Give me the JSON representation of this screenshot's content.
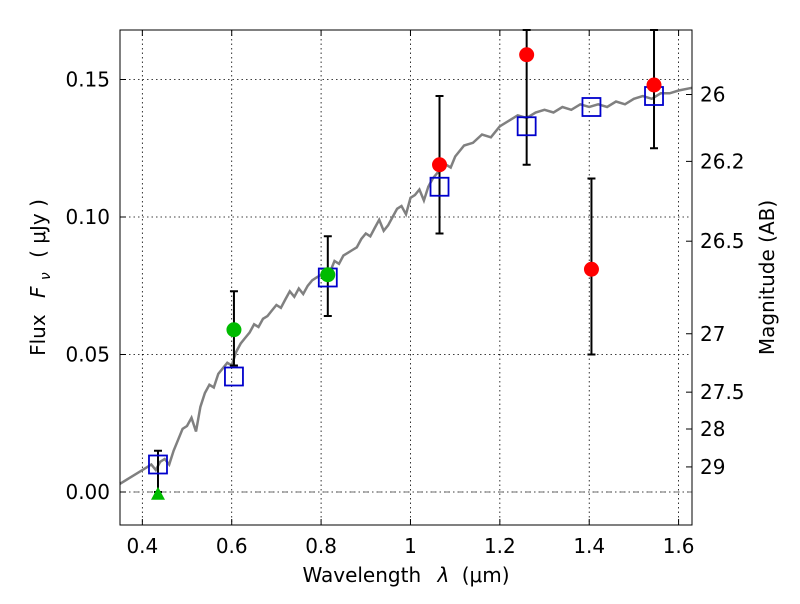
{
  "chart_data": {
    "type": "scatter",
    "xlabel": "Wavelength",
    "xlabel_symbol": "λ",
    "xlabel_unit": "(μm)",
    "ylabel": "Flux",
    "ylabel_symbol": "F",
    "ylabel_subscript": "ν",
    "ylabel_unit": "( μJy )",
    "y2label": "Magnitude (AB)",
    "xlim": [
      0.35,
      1.63
    ],
    "ylim": [
      -0.012,
      0.168
    ],
    "grid": true,
    "xticks": [
      {
        "value": 0.4,
        "label": "0.4"
      },
      {
        "value": 0.6,
        "label": "0.6"
      },
      {
        "value": 0.8,
        "label": "0.8"
      },
      {
        "value": 1.0,
        "label": "1"
      },
      {
        "value": 1.2,
        "label": "1.2"
      },
      {
        "value": 1.4,
        "label": "1.4"
      },
      {
        "value": 1.6,
        "label": "1.6"
      }
    ],
    "yticks": [
      {
        "value": 0.0,
        "label": "0.00"
      },
      {
        "value": 0.05,
        "label": "0.05"
      },
      {
        "value": 0.1,
        "label": "0.10"
      },
      {
        "value": 0.15,
        "label": "0.15"
      }
    ],
    "y2ticks": [
      {
        "value": 26,
        "label": "26"
      },
      {
        "value": 26.2,
        "label": "26.2"
      },
      {
        "value": 26.5,
        "label": "26.5"
      },
      {
        "value": 27,
        "label": "27"
      },
      {
        "value": 27.5,
        "label": "27.5"
      },
      {
        "value": 28,
        "label": "28"
      },
      {
        "value": 29,
        "label": "29"
      }
    ],
    "colors": {
      "model": "#808080",
      "model_photometry": "#0000cc",
      "observed_red": "#ff0000",
      "observed_green": "#00bb00",
      "errorbar": "#000000",
      "zero_line": "#404040"
    },
    "series": [
      {
        "kind": "model_spectrum",
        "x": [
          0.35,
          0.37,
          0.39,
          0.41,
          0.42,
          0.43,
          0.44,
          0.45,
          0.46,
          0.47,
          0.48,
          0.49,
          0.5,
          0.51,
          0.52,
          0.53,
          0.54,
          0.55,
          0.56,
          0.57,
          0.58,
          0.59,
          0.6,
          0.61,
          0.62,
          0.63,
          0.64,
          0.65,
          0.66,
          0.67,
          0.68,
          0.69,
          0.7,
          0.71,
          0.72,
          0.73,
          0.74,
          0.75,
          0.76,
          0.77,
          0.78,
          0.79,
          0.8,
          0.81,
          0.82,
          0.83,
          0.84,
          0.85,
          0.86,
          0.87,
          0.88,
          0.89,
          0.9,
          0.91,
          0.92,
          0.93,
          0.94,
          0.95,
          0.96,
          0.97,
          0.98,
          0.99,
          1.0,
          1.01,
          1.02,
          1.03,
          1.04,
          1.05,
          1.06,
          1.07,
          1.08,
          1.09,
          1.1,
          1.12,
          1.14,
          1.16,
          1.18,
          1.2,
          1.22,
          1.24,
          1.26,
          1.28,
          1.3,
          1.32,
          1.34,
          1.36,
          1.38,
          1.4,
          1.42,
          1.44,
          1.46,
          1.48,
          1.5,
          1.52,
          1.54,
          1.56,
          1.58,
          1.6,
          1.63
        ],
        "y": [
          0.003,
          0.005,
          0.007,
          0.009,
          0.01,
          0.008,
          0.011,
          0.012,
          0.01,
          0.015,
          0.019,
          0.023,
          0.024,
          0.027,
          0.022,
          0.031,
          0.036,
          0.039,
          0.038,
          0.043,
          0.045,
          0.047,
          0.046,
          0.051,
          0.054,
          0.056,
          0.058,
          0.061,
          0.06,
          0.063,
          0.064,
          0.066,
          0.068,
          0.067,
          0.07,
          0.073,
          0.071,
          0.074,
          0.072,
          0.075,
          0.077,
          0.078,
          0.079,
          0.081,
          0.08,
          0.084,
          0.083,
          0.086,
          0.087,
          0.088,
          0.089,
          0.092,
          0.094,
          0.093,
          0.096,
          0.099,
          0.095,
          0.097,
          0.1,
          0.103,
          0.104,
          0.101,
          0.107,
          0.108,
          0.11,
          0.106,
          0.111,
          0.114,
          0.116,
          0.117,
          0.119,
          0.118,
          0.122,
          0.126,
          0.127,
          0.13,
          0.129,
          0.133,
          0.135,
          0.137,
          0.136,
          0.138,
          0.139,
          0.138,
          0.14,
          0.139,
          0.141,
          0.14,
          0.141,
          0.14,
          0.142,
          0.141,
          0.143,
          0.144,
          0.143,
          0.145,
          0.145,
          0.146,
          0.147
        ]
      },
      {
        "kind": "model_photometry",
        "x": [
          0.435,
          0.605,
          0.815,
          1.065,
          1.26,
          1.405,
          1.545
        ],
        "y": [
          0.01,
          0.042,
          0.078,
          0.111,
          0.133,
          0.14,
          0.144
        ]
      },
      {
        "kind": "observed_red",
        "x": [
          1.065,
          1.26,
          1.405,
          1.545
        ],
        "y": [
          0.119,
          0.159,
          0.081,
          0.148
        ],
        "yerr_low": [
          0.094,
          0.119,
          0.05,
          0.125
        ],
        "yerr_high": [
          0.144,
          0.168,
          0.114,
          0.168
        ]
      },
      {
        "kind": "observed_green",
        "x": [
          0.605,
          0.815
        ],
        "y": [
          0.059,
          0.079
        ],
        "yerr_low": [
          0.046,
          0.064
        ],
        "yerr_high": [
          0.073,
          0.093
        ]
      },
      {
        "kind": "upper_limit_triangle",
        "x": [
          0.435
        ],
        "y": [
          -0.001
        ],
        "yerr_low": [
          0.0
        ],
        "yerr_high": [
          0.015
        ]
      }
    ]
  }
}
